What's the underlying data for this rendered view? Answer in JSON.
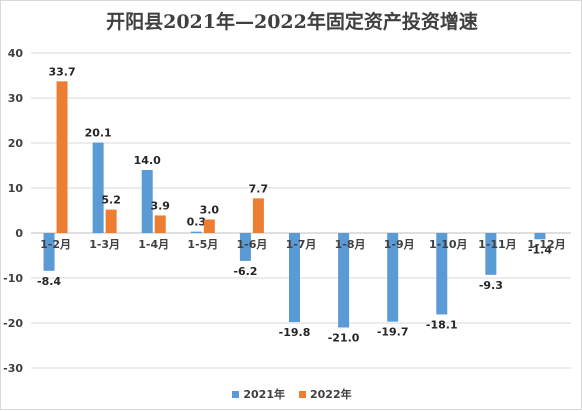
{
  "chart_data": {
    "type": "bar",
    "title": "开阳县2021年—2022年固定资产投资增速",
    "categories": [
      "1-2月",
      "1-3月",
      "1-4月",
      "1-5月",
      "1-6月",
      "1-7月",
      "1-8月",
      "1-9月",
      "1-10月",
      "1-11月",
      "1-12月"
    ],
    "series": [
      {
        "name": "2021年",
        "color": "#5b9bd5",
        "values": [
          -8.4,
          20.1,
          14.0,
          0.3,
          -6.2,
          -19.8,
          -21.0,
          -19.7,
          -18.1,
          -9.3,
          -1.4
        ],
        "labels": [
          "-8.4",
          "20.1",
          "14.0",
          "0.3",
          "-6.2",
          "-19.8",
          "-21.0",
          "-19.7",
          "-18.1",
          "-9.3",
          "-1.4"
        ]
      },
      {
        "name": "2022年",
        "color": "#ed7d31",
        "values": [
          33.7,
          5.2,
          3.9,
          3.0,
          7.7,
          null,
          null,
          null,
          null,
          null,
          null
        ],
        "labels": [
          "33.7",
          "5.2",
          "3.9",
          "3.0",
          "7.7",
          "",
          "",
          "",
          "",
          "",
          ""
        ]
      }
    ],
    "ylim": [
      -30,
      40
    ],
    "yticks": [
      "-30",
      "-20",
      "-10",
      "0",
      "10",
      "20",
      "30",
      "40"
    ],
    "grid": true,
    "legend_position": "bottom"
  }
}
